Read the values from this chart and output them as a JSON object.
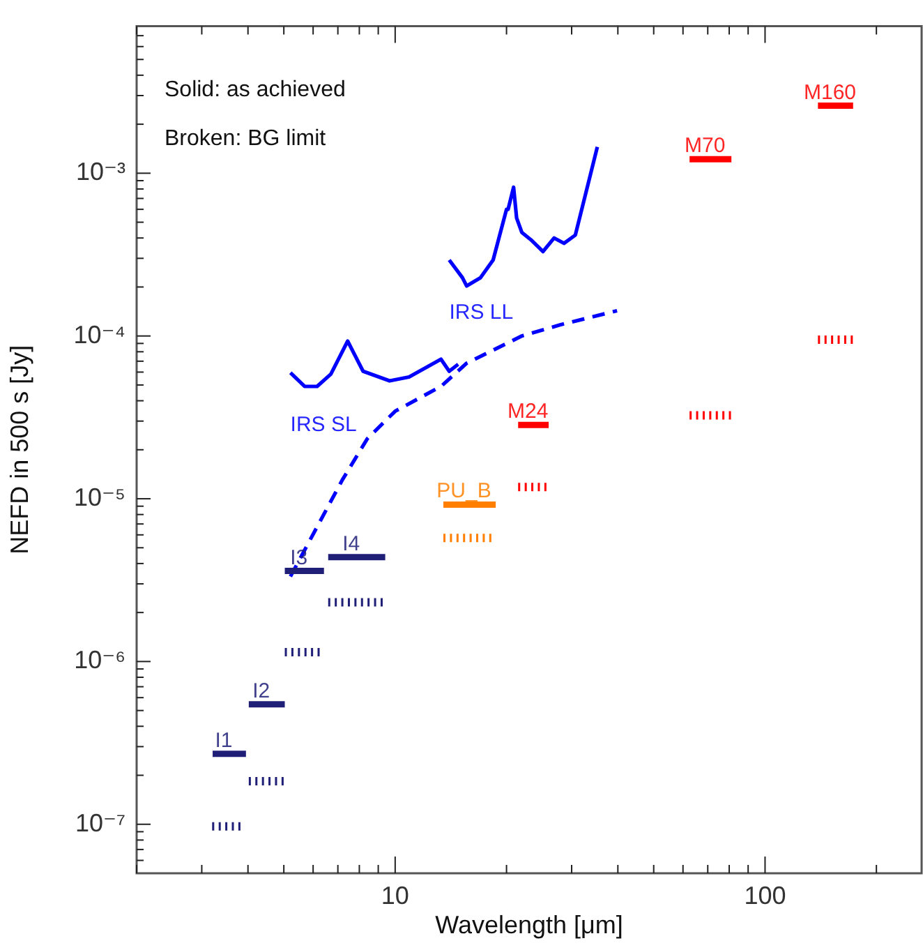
{
  "chart_data": {
    "type": "line",
    "xlabel": "Wavelength [μm]",
    "ylabel": "NEFD in 500 s [Jy]",
    "log": "xy",
    "grid": false,
    "legend": false,
    "marker": "none",
    "xlim": [
      2,
      265
    ],
    "ylim": [
      5e-08,
      0.008
    ],
    "xticks": [
      {
        "value": 2,
        "label": null
      },
      {
        "value": 3,
        "label": null
      },
      {
        "value": 4,
        "label": null
      },
      {
        "value": 5,
        "label": null
      },
      {
        "value": 6,
        "label": null
      },
      {
        "value": 7,
        "label": null
      },
      {
        "value": 8,
        "label": null
      },
      {
        "value": 9,
        "label": null
      },
      10,
      {
        "value": 20,
        "label": null
      },
      {
        "value": 30,
        "label": null
      },
      {
        "value": 40,
        "label": null
      },
      {
        "value": 50,
        "label": null
      },
      {
        "value": 60,
        "label": null
      },
      {
        "value": 70,
        "label": null
      },
      {
        "value": 80,
        "label": null
      },
      {
        "value": 90,
        "label": null
      },
      100,
      {
        "value": 200,
        "label": null
      }
    ],
    "yticks": [
      {
        "value": 6e-08,
        "label": null
      },
      {
        "value": 7e-08,
        "label": null
      },
      {
        "value": 8e-08,
        "label": null
      },
      {
        "value": 9e-08,
        "label": null
      },
      {
        "value": 1e-07,
        "label": "10⁻⁷"
      },
      {
        "value": 2e-07,
        "label": null
      },
      {
        "value": 3e-07,
        "label": null
      },
      {
        "value": 4e-07,
        "label": null
      },
      {
        "value": 5e-07,
        "label": null
      },
      {
        "value": 6e-07,
        "label": null
      },
      {
        "value": 7e-07,
        "label": null
      },
      {
        "value": 8e-07,
        "label": null
      },
      {
        "value": 9e-07,
        "label": null
      },
      {
        "value": 1e-06,
        "label": "10⁻⁶"
      },
      {
        "value": 2e-06,
        "label": null
      },
      {
        "value": 3e-06,
        "label": null
      },
      {
        "value": 4e-06,
        "label": null
      },
      {
        "value": 5e-06,
        "label": null
      },
      {
        "value": 6e-06,
        "label": null
      },
      {
        "value": 7e-06,
        "label": null
      },
      {
        "value": 8e-06,
        "label": null
      },
      {
        "value": 9e-06,
        "label": null
      },
      {
        "value": 1e-05,
        "label": "10⁻⁵"
      },
      {
        "value": 2e-05,
        "label": null
      },
      {
        "value": 3e-05,
        "label": null
      },
      {
        "value": 4e-05,
        "label": null
      },
      {
        "value": 5e-05,
        "label": null
      },
      {
        "value": 6e-05,
        "label": null
      },
      {
        "value": 7e-05,
        "label": null
      },
      {
        "value": 8e-05,
        "label": null
      },
      {
        "value": 9e-05,
        "label": null
      },
      {
        "value": 0.0001,
        "label": "10⁻⁴"
      },
      {
        "value": 0.0002,
        "label": null
      },
      {
        "value": 0.0003,
        "label": null
      },
      {
        "value": 0.0004,
        "label": null
      },
      {
        "value": 0.0005,
        "label": null
      },
      {
        "value": 0.0006,
        "label": null
      },
      {
        "value": 0.0007,
        "label": null
      },
      {
        "value": 0.0008,
        "label": null
      },
      {
        "value": 0.0009,
        "label": null
      },
      {
        "value": 0.001,
        "label": "10⁻³"
      },
      {
        "value": 0.002,
        "label": null
      },
      {
        "value": 0.003,
        "label": null
      },
      {
        "value": 0.004,
        "label": null
      },
      {
        "value": 0.005,
        "label": null
      },
      {
        "value": 0.006,
        "label": null
      },
      {
        "value": 0.007,
        "label": null
      }
    ],
    "series": [
      {
        "name": "I1",
        "color": "#1f1f78",
        "line_style": "solid",
        "x": [
          3.21,
          3.95
        ],
        "values": [
          2.71e-07,
          2.71e-07
        ]
      },
      {
        "color": "#1f1f78",
        "line_style": "dotted",
        "x": [
          3.2,
          3.85
        ],
        "values": [
          9.7e-08,
          9.7e-08
        ]
      },
      {
        "name": "I2",
        "color": "#1f1f78",
        "line_style": "solid",
        "x": [
          4.02,
          5.03
        ],
        "values": [
          5.46e-07,
          5.46e-07
        ]
      },
      {
        "color": "#1f1f78",
        "line_style": "dotted",
        "x": [
          4.02,
          5.03
        ],
        "values": [
          1.84e-07,
          1.84e-07
        ]
      },
      {
        "name": "I3",
        "color": "#1f1f78",
        "line_style": "solid",
        "x": [
          5.03,
          6.42
        ],
        "values": [
          3.6e-06,
          3.6e-06
        ]
      },
      {
        "color": "#1f1f78",
        "line_style": "dotted",
        "x": [
          5.03,
          6.25
        ],
        "values": [
          1.14e-06,
          1.14e-06
        ]
      },
      {
        "name": "I4",
        "color": "#1f1f78",
        "line_style": "solid",
        "x": [
          6.59,
          9.4
        ],
        "values": [
          4.38e-06,
          4.38e-06
        ]
      },
      {
        "color": "#1f1f78",
        "line_style": "dotted",
        "x": [
          6.59,
          9.4
        ],
        "values": [
          2.31e-06,
          2.31e-06
        ]
      },
      {
        "name": "PU_B",
        "color": "#ff8000",
        "line_style": "solid",
        "x": [
          13.5,
          18.7
        ],
        "values": [
          9.2e-06,
          9.2e-06
        ]
      },
      {
        "color": "#ff8000",
        "line_style": "dotted",
        "x": [
          13.5,
          18.5
        ],
        "values": [
          5.75e-06,
          5.75e-06
        ]
      },
      {
        "name": "M24",
        "color": "#ff0000",
        "line_style": "solid",
        "x": [
          21.5,
          26.0
        ],
        "values": [
          2.84e-05,
          2.84e-05
        ]
      },
      {
        "color": "#ff0000",
        "line_style": "dotted",
        "x": [
          21.5,
          25.8
        ],
        "values": [
          1.18e-05,
          1.18e-05
        ]
      },
      {
        "name": "M70",
        "color": "#ff0000",
        "line_style": "solid",
        "x": [
          62.5,
          81.1
        ],
        "values": [
          0.00122,
          0.00122
        ]
      },
      {
        "color": "#ff0000",
        "line_style": "dotted",
        "x": [
          62.5,
          81.1
        ],
        "values": [
          3.25e-05,
          3.25e-05
        ]
      },
      {
        "name": "M160",
        "color": "#ff0000",
        "line_style": "solid",
        "x": [
          139,
          173
        ],
        "values": [
          0.0026,
          0.0026
        ]
      },
      {
        "color": "#ff0000",
        "line_style": "dotted",
        "x": [
          139,
          173
        ],
        "values": [
          9.5e-05,
          9.5e-05
        ]
      },
      {
        "name": "IRS SL",
        "color": "#0000ff",
        "line_style": "solid",
        "x": [
          5.21,
          5.69,
          6.15,
          6.7,
          7.44,
          8.19,
          9.66,
          10.9,
          13.3,
          14.0,
          14.8
        ],
        "values": [
          5.94e-05,
          4.9e-05,
          4.9e-05,
          5.83e-05,
          9.3e-05,
          6.07e-05,
          5.3e-05,
          5.6e-05,
          7.2e-05,
          6.07e-05,
          6.7e-05
        ]
      },
      {
        "name": "IRS LL",
        "color": "#0000ff",
        "line_style": "solid",
        "x": [
          14.0,
          15.2,
          15.6,
          17.0,
          18.4,
          20.0,
          20.2,
          20.9,
          21.3,
          22.0,
          23.4,
          25.1,
          26.9,
          28.6,
          30.7,
          35.2
        ],
        "values": [
          0.000293,
          0.000228,
          0.000203,
          0.000228,
          0.000293,
          0.0006,
          0.0006,
          0.00082,
          0.00053,
          0.000433,
          0.000386,
          0.00033,
          0.0004,
          0.000371,
          0.000417,
          0.00145
        ]
      },
      {
        "color": "#0000ff",
        "line_style": "dashed",
        "x": [
          5.21,
          7.19,
          8.41,
          10,
          13.3,
          15.6,
          22.0,
          27.9,
          39.8
        ],
        "values": [
          3.33e-06,
          1.3e-05,
          2.34e-05,
          3.45e-05,
          4.9e-05,
          6.8e-05,
          0.0001,
          0.000117,
          0.000143
        ]
      }
    ],
    "annotations": [
      "Solid: as achieved",
      "Broken: BG limit"
    ]
  }
}
